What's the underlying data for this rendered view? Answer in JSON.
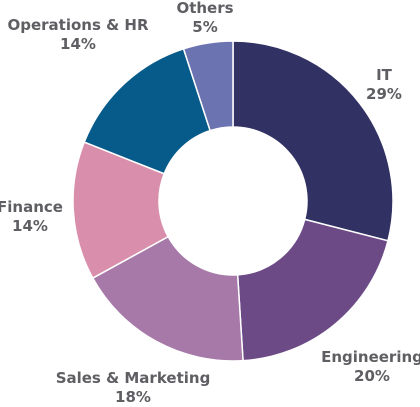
{
  "chart_data": {
    "type": "pie",
    "style": "donut",
    "slices": [
      {
        "label": "IT",
        "value": 29,
        "value_text": "29%",
        "color": "#313163"
      },
      {
        "label": "Engineering",
        "value": 20,
        "value_text": "20%",
        "color": "#6c4a86"
      },
      {
        "label": "Sales & Marketing",
        "value": 18,
        "value_text": "18%",
        "color": "#a679a8"
      },
      {
        "label": "Finance",
        "value": 14,
        "value_text": "14%",
        "color": "#d98fab"
      },
      {
        "label": "Operations & HR",
        "value": 14,
        "value_text": "14%",
        "color": "#075b8a"
      },
      {
        "label": "Others",
        "value": 5,
        "value_text": "5%",
        "color": "#6b74b1"
      }
    ],
    "start_angle_deg": 0,
    "direction": "clockwise",
    "legend": "none",
    "data_labels": "outside"
  }
}
